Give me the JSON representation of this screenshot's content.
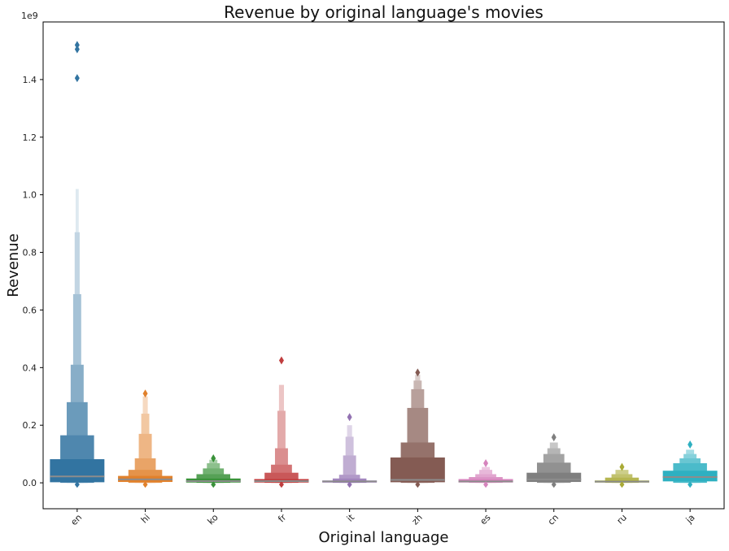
{
  "chart_data": {
    "type": "boxen",
    "title": "Revenue by original language's movies",
    "xlabel": "Original language",
    "ylabel": "Revenue",
    "y_offset_label": "1e9",
    "y_scale": 1000000000,
    "ylim": [
      -0.09,
      1.6
    ],
    "y_ticks": [
      0.0,
      0.2,
      0.4,
      0.6,
      0.8,
      1.0,
      1.2,
      1.4
    ],
    "y_tick_labels": [
      "0.0",
      "0.2",
      "0.4",
      "0.6",
      "0.8",
      "1.0",
      "1.2",
      "1.4"
    ],
    "categories": [
      "en",
      "hi",
      "ko",
      "fr",
      "it",
      "zh",
      "es",
      "cn",
      "ru",
      "ja"
    ],
    "colors": [
      "#3274a1",
      "#e1812c",
      "#3a923a",
      "#c03d3e",
      "#9372b2",
      "#845b53",
      "#d684bd",
      "#7f7f7f",
      "#a9aa35",
      "#2eb0c1"
    ],
    "grid": false,
    "legend": "none",
    "series": [
      {
        "category": "en",
        "median": 0.022,
        "boxes": [
          [
            0.002,
            0.082
          ],
          [
            0.0,
            0.165
          ],
          [
            0.0,
            0.28
          ],
          [
            0.0,
            0.41
          ],
          [
            0.0,
            0.655
          ],
          [
            0.0,
            0.87
          ],
          [
            0.0,
            1.02
          ]
        ],
        "outliers": [
          1.52,
          1.505,
          1.405
        ]
      },
      {
        "category": "hi",
        "median": 0.012,
        "boxes": [
          [
            0.003,
            0.024
          ],
          [
            0.0,
            0.045
          ],
          [
            0.0,
            0.085
          ],
          [
            0.0,
            0.17
          ],
          [
            0.0,
            0.24
          ],
          [
            0.0,
            0.3
          ]
        ],
        "outliers": [
          0.31
        ]
      },
      {
        "category": "ko",
        "median": 0.006,
        "boxes": [
          [
            0.001,
            0.015
          ],
          [
            0.0,
            0.03
          ],
          [
            0.0,
            0.05
          ],
          [
            0.0,
            0.068
          ],
          [
            0.0,
            0.08
          ]
        ],
        "outliers": [
          0.085
        ]
      },
      {
        "category": "fr",
        "median": 0.006,
        "boxes": [
          [
            0.001,
            0.013
          ],
          [
            0.0,
            0.035
          ],
          [
            0.0,
            0.063
          ],
          [
            0.0,
            0.12
          ],
          [
            0.0,
            0.25
          ],
          [
            0.0,
            0.34
          ]
        ],
        "outliers": [
          0.425
        ]
      },
      {
        "category": "it",
        "median": 0.005,
        "boxes": [
          [
            0.001,
            0.008
          ],
          [
            0.0,
            0.015
          ],
          [
            0.0,
            0.028
          ],
          [
            0.0,
            0.095
          ],
          [
            0.0,
            0.16
          ],
          [
            0.0,
            0.2
          ]
        ],
        "outliers": [
          0.228
        ]
      },
      {
        "category": "zh",
        "median": 0.01,
        "boxes": [
          [
            0.002,
            0.088
          ],
          [
            0.0,
            0.14
          ],
          [
            0.0,
            0.26
          ],
          [
            0.0,
            0.325
          ],
          [
            0.0,
            0.355
          ],
          [
            0.0,
            0.375
          ]
        ],
        "outliers": [
          0.383
        ]
      },
      {
        "category": "es",
        "median": 0.005,
        "boxes": [
          [
            0.001,
            0.013
          ],
          [
            0.0,
            0.02
          ],
          [
            0.0,
            0.03
          ],
          [
            0.0,
            0.045
          ],
          [
            0.0,
            0.055
          ]
        ],
        "outliers": [
          0.068
        ]
      },
      {
        "category": "cn",
        "median": 0.012,
        "boxes": [
          [
            0.003,
            0.035
          ],
          [
            0.0,
            0.07
          ],
          [
            0.0,
            0.1
          ],
          [
            0.0,
            0.12
          ],
          [
            0.0,
            0.14
          ]
        ],
        "outliers": [
          0.158
        ]
      },
      {
        "category": "ru",
        "median": 0.004,
        "boxes": [
          [
            0.001,
            0.008
          ],
          [
            0.0,
            0.018
          ],
          [
            0.0,
            0.03
          ],
          [
            0.0,
            0.045
          ]
        ],
        "outliers": [
          0.055
        ]
      },
      {
        "category": "ja",
        "median": 0.02,
        "boxes": [
          [
            0.005,
            0.042
          ],
          [
            0.0,
            0.068
          ],
          [
            0.0,
            0.085
          ],
          [
            0.0,
            0.1
          ],
          [
            0.0,
            0.115
          ]
        ],
        "outliers": [
          0.133
        ]
      }
    ]
  }
}
